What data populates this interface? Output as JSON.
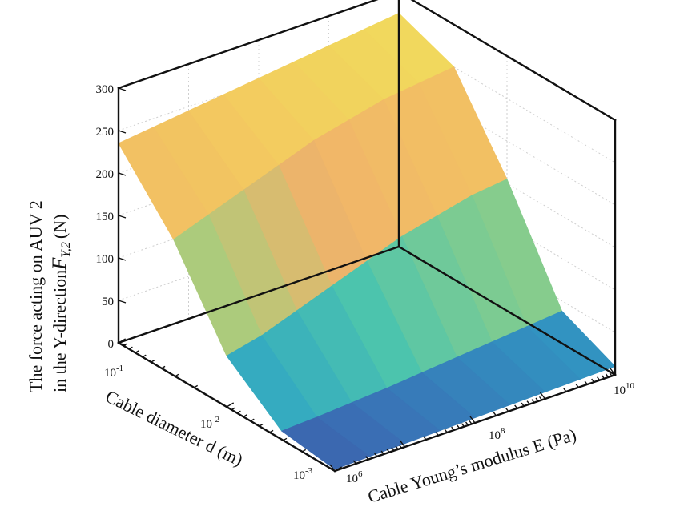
{
  "chart_data": {
    "type": "surface3d",
    "x_axis": {
      "label": "Cable Young’s modulus E (Pa)",
      "scale": "log",
      "range": [
        1000000,
        10000000000
      ],
      "ticks": [
        {
          "base": "10",
          "exp": "6",
          "value": 1000000
        },
        {
          "base": "10",
          "exp": "8",
          "value": 100000000
        },
        {
          "base": "10",
          "exp": "10",
          "value": 10000000000
        }
      ]
    },
    "y_axis": {
      "label": "Cable diameter d (m)",
      "scale": "log",
      "range": [
        0.001,
        0.1
      ],
      "ticks": [
        {
          "base": "10",
          "exp": "-3",
          "value": 0.001
        },
        {
          "base": "10",
          "exp": "-2",
          "value": 0.01
        },
        {
          "base": "10",
          "exp": "-1",
          "value": 0.1
        }
      ]
    },
    "z_axis": {
      "label_line1": "The force acting on AUV 2",
      "label_line2": "in the Y-direction",
      "label_symbol": "F",
      "label_subscript": "Y,2",
      "label_unit": "(N)",
      "range": [
        0,
        300
      ],
      "ticks": [
        0,
        50,
        100,
        150,
        200,
        250,
        300
      ]
    },
    "colormap": [
      "#3e3a8c",
      "#3a6fb5",
      "#2ea3c6",
      "#4cc4ad",
      "#9fd07f",
      "#f0b36a",
      "#f3c95f",
      "#eee95a"
    ],
    "surface_rows": [
      {
        "d": 0.1,
        "F_at_E": [
          235,
          240,
          245,
          250,
          255,
          260,
          265,
          270,
          275
        ]
      },
      {
        "d": 0.031,
        "F_at_E": [
          160,
          175,
          190,
          205,
          220,
          230,
          240,
          245,
          250
        ]
      },
      {
        "d": 0.01,
        "F_at_E": [
          60,
          70,
          85,
          100,
          115,
          130,
          140,
          150,
          155
        ]
      },
      {
        "d": 0.0031,
        "F_at_E": [
          10,
          12,
          15,
          18,
          22,
          26,
          30,
          34,
          38
        ]
      },
      {
        "d": 0.001,
        "F_at_E": [
          2,
          3,
          4,
          5,
          6,
          7,
          8,
          9,
          10
        ]
      }
    ],
    "grid": true
  }
}
